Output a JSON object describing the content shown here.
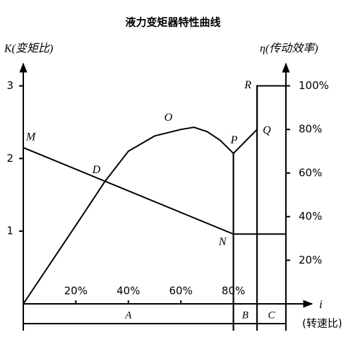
{
  "chart_data": {
    "type": "line",
    "title": "液力变矩器特性曲线",
    "ylabel": "K(变矩比)",
    "y2label": "η(传动效率)",
    "xlabel": "i",
    "xlabel2": "(转速比)",
    "xlim": [
      0,
      100
    ],
    "xticks": [
      {
        "value": 20,
        "label": "20%"
      },
      {
        "value": 40,
        "label": "40%"
      },
      {
        "value": 60,
        "label": "60%"
      },
      {
        "value": 80,
        "label": "80%"
      }
    ],
    "ylim": [
      0,
      3
    ],
    "yticks": [
      1,
      2,
      3
    ],
    "y2lim": [
      0,
      100
    ],
    "y2ticks": [
      {
        "value": 20,
        "label": "20%"
      },
      {
        "value": 40,
        "label": "40%"
      },
      {
        "value": 60,
        "label": "60%"
      },
      {
        "value": 80,
        "label": "80%"
      },
      {
        "value": 100,
        "label": "100%"
      }
    ],
    "series": [
      {
        "color": "#000000",
        "axis": "y",
        "x": [
          0,
          80,
          100
        ],
        "values": [
          2.15,
          0.96,
          0.96
        ],
        "point_labels": [
          "M",
          "N",
          null
        ]
      },
      {
        "color": "#000000",
        "axis": "y2",
        "x": [
          0,
          10,
          20,
          31,
          40,
          50,
          60,
          65,
          70,
          75,
          80,
          89,
          89,
          100
        ],
        "values": [
          0,
          18,
          36,
          56,
          70,
          77,
          80,
          81,
          79,
          75,
          69,
          80,
          100,
          100
        ],
        "point_labels": [
          null,
          null,
          null,
          "D",
          null,
          null,
          "O",
          null,
          null,
          null,
          "P",
          "Q",
          "R",
          null
        ]
      }
    ],
    "regions": [
      {
        "label": "A",
        "range": [
          0,
          80
        ]
      },
      {
        "label": "B",
        "range": [
          80,
          89
        ]
      },
      {
        "label": "C",
        "range": [
          89,
          100
        ]
      }
    ]
  }
}
